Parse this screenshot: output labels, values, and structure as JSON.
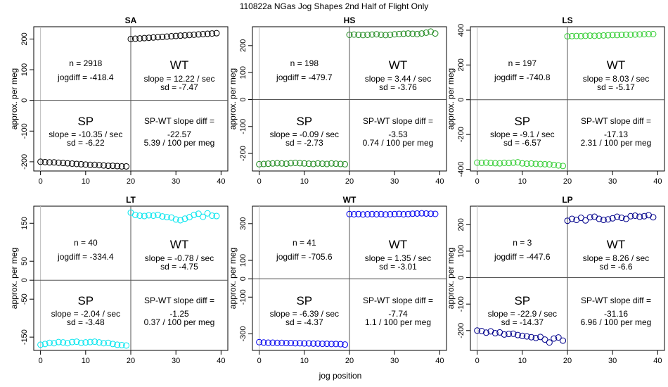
{
  "figure": {
    "title": "110822a   NGas Jog Shapes 2nd Half of Flight Only",
    "xlabel": "jog position",
    "ylabel": "approx. per meg"
  },
  "chart_data": [
    {
      "type": "scatter",
      "title": "SA",
      "color": "#000000",
      "ylim": [
        -230,
        240
      ],
      "yticks": [
        "-200",
        "-100",
        "0",
        "100",
        "200"
      ],
      "ytick_values": [
        -200,
        -100,
        0,
        100,
        200
      ],
      "xlim": [
        -1.5,
        41.5
      ],
      "xticks": [
        "0",
        "10",
        "20",
        "30",
        "40"
      ],
      "xtick_values": [
        0,
        10,
        20,
        30,
        40
      ],
      "n_text": "n = 2918",
      "jogdiff_text": "jogdiff = -418.4",
      "wt_label": "WT",
      "wt_slope_text": "slope = 12.22 / sec",
      "wt_sd_text": "sd = -7.47",
      "sp_label": "SP",
      "sp_slope_text": "slope = -10.35 / sec",
      "sp_sd_text": "sd = -6.22",
      "diff_label": "SP-WT slope diff =",
      "diff_value": "-22.57",
      "per_meg_text": "5.39 / 100 per meg",
      "sp_x": [
        0,
        1,
        2,
        3,
        4,
        5,
        6,
        7,
        8,
        9,
        10,
        11,
        12,
        13,
        14,
        15,
        16,
        17,
        18,
        19
      ],
      "sp_y": [
        -200,
        -201,
        -202,
        -202,
        -203,
        -204,
        -205,
        -206,
        -207,
        -208,
        -209,
        -210,
        -210,
        -211,
        -212,
        -213,
        -213,
        -214,
        -215,
        -215
      ],
      "wt_x": [
        20,
        21,
        22,
        23,
        24,
        25,
        26,
        27,
        28,
        29,
        30,
        31,
        32,
        33,
        34,
        35,
        36,
        37,
        38,
        39
      ],
      "wt_y": [
        200,
        201,
        202,
        203,
        204,
        205,
        206,
        207,
        208,
        209,
        210,
        211,
        212,
        213,
        214,
        215,
        216,
        217,
        218,
        219
      ]
    },
    {
      "type": "scatter",
      "title": "HS",
      "color": "#228B22",
      "ylim": [
        -265,
        270
      ],
      "yticks": [
        "-200",
        "-100",
        "0",
        "100",
        "200"
      ],
      "ytick_values": [
        -200,
        -100,
        0,
        100,
        200
      ],
      "xlim": [
        -1.5,
        41.5
      ],
      "xticks": [
        "0",
        "10",
        "20",
        "30",
        "40"
      ],
      "xtick_values": [
        0,
        10,
        20,
        30,
        40
      ],
      "n_text": "n = 198",
      "jogdiff_text": "jogdiff = -479.7",
      "wt_label": "WT",
      "wt_slope_text": "slope = 3.44 / sec",
      "wt_sd_text": "sd = -3.76",
      "sp_label": "SP",
      "sp_slope_text": "slope = -0.09 / sec",
      "sp_sd_text": "sd = -2.73",
      "diff_label": "SP-WT slope diff =",
      "diff_value": "-3.53",
      "per_meg_text": "0.74 / 100 per meg",
      "sp_x": [
        0,
        1,
        2,
        3,
        4,
        5,
        6,
        7,
        8,
        9,
        10,
        11,
        12,
        13,
        14,
        15,
        16,
        17,
        18,
        19
      ],
      "sp_y": [
        -240,
        -239,
        -238,
        -237,
        -236,
        -237,
        -238,
        -236,
        -235,
        -236,
        -237,
        -238,
        -239,
        -237,
        -238,
        -239,
        -237,
        -238,
        -239,
        -240
      ],
      "wt_x": [
        20,
        21,
        22,
        23,
        24,
        25,
        26,
        27,
        28,
        29,
        30,
        31,
        32,
        33,
        34,
        35,
        36,
        37,
        38,
        39
      ],
      "wt_y": [
        240,
        241,
        240,
        239,
        240,
        241,
        242,
        240,
        239,
        240,
        242,
        243,
        244,
        245,
        244,
        243,
        245,
        248,
        252,
        245
      ]
    },
    {
      "type": "scatter",
      "title": "LS",
      "color": "#32CD32",
      "ylim": [
        -410,
        420
      ],
      "yticks": [
        "-400",
        "-200",
        "0",
        "200",
        "400"
      ],
      "ytick_values": [
        -400,
        -200,
        0,
        200,
        400
      ],
      "xlim": [
        -1.5,
        41.5
      ],
      "xticks": [
        "0",
        "10",
        "20",
        "30",
        "40"
      ],
      "xtick_values": [
        0,
        10,
        20,
        30,
        40
      ],
      "n_text": "n = 197",
      "jogdiff_text": "jogdiff = -740.8",
      "wt_label": "WT",
      "wt_slope_text": "slope = 8.03 / sec",
      "wt_sd_text": "sd = -5.17",
      "sp_label": "SP",
      "sp_slope_text": "slope = -9.1 / sec",
      "sp_sd_text": "sd = -6.57",
      "diff_label": "SP-WT slope diff =",
      "diff_value": "-17.13",
      "per_meg_text": "2.31 / 100 per meg",
      "sp_x": [
        0,
        1,
        2,
        3,
        4,
        5,
        6,
        7,
        8,
        9,
        10,
        11,
        12,
        13,
        14,
        15,
        16,
        17,
        18,
        19
      ],
      "sp_y": [
        -362,
        -363,
        -362,
        -364,
        -365,
        -366,
        -363,
        -364,
        -362,
        -360,
        -366,
        -368,
        -367,
        -369,
        -370,
        -371,
        -372,
        -375,
        -378,
        -381
      ],
      "wt_x": [
        20,
        21,
        22,
        23,
        24,
        25,
        26,
        27,
        28,
        29,
        30,
        31,
        32,
        33,
        34,
        35,
        36,
        37,
        38,
        39
      ],
      "wt_y": [
        365,
        366,
        367,
        366,
        368,
        369,
        368,
        369,
        370,
        371,
        372,
        372,
        373,
        374,
        374,
        375,
        376,
        377,
        378,
        378
      ]
    },
    {
      "type": "scatter",
      "title": "LT",
      "color": "#00E5EE",
      "ylim": [
        -185,
        195
      ],
      "yticks": [
        "-150",
        "-50",
        "0",
        "50",
        "150"
      ],
      "ytick_values": [
        -150,
        -50,
        0,
        50,
        150
      ],
      "xlim": [
        -1.5,
        41.5
      ],
      "xticks": [
        "0",
        "10",
        "20",
        "30",
        "40"
      ],
      "xtick_values": [
        0,
        10,
        20,
        30,
        40
      ],
      "n_text": "n = 40",
      "jogdiff_text": "jogdiff = -334.4",
      "wt_label": "WT",
      "wt_slope_text": "slope = -0.78 / sec",
      "wt_sd_text": "sd = -4.75",
      "sp_label": "SP",
      "sp_slope_text": "slope = -2.04 / sec",
      "sp_sd_text": "sd = -3.48",
      "diff_label": "SP-WT slope diff =",
      "diff_value": "-1.25",
      "per_meg_text": "0.37 / 100 per meg",
      "sp_x": [
        0,
        1,
        2,
        3,
        4,
        5,
        6,
        7,
        8,
        9,
        10,
        11,
        12,
        13,
        14,
        15,
        16,
        17,
        18,
        19
      ],
      "sp_y": [
        -170,
        -168,
        -165,
        -166,
        -163,
        -164,
        -166,
        -163,
        -162,
        -165,
        -164,
        -163,
        -162,
        -164,
        -166,
        -165,
        -168,
        -170,
        -171,
        -172
      ],
      "wt_x": [
        20,
        21,
        22,
        23,
        24,
        25,
        26,
        27,
        28,
        29,
        30,
        31,
        32,
        33,
        34,
        35,
        36,
        37,
        38,
        39
      ],
      "wt_y": [
        178,
        172,
        170,
        169,
        171,
        170,
        172,
        168,
        166,
        165,
        160,
        158,
        162,
        166,
        172,
        175,
        167,
        176,
        170,
        169
      ]
    },
    {
      "type": "scatter",
      "title": "WT",
      "color": "#0000EE",
      "ylim": [
        -390,
        395
      ],
      "yticks": [
        "-300",
        "-100",
        "0",
        "100",
        "300"
      ],
      "ytick_values": [
        -300,
        -100,
        0,
        100,
        300
      ],
      "xlim": [
        -1.5,
        41.5
      ],
      "xticks": [
        "0",
        "10",
        "20",
        "30",
        "40"
      ],
      "xtick_values": [
        0,
        10,
        20,
        30,
        40
      ],
      "n_text": "n = 41",
      "jogdiff_text": "jogdiff = -705.6",
      "wt_label": "WT",
      "wt_slope_text": "slope = 1.35 / sec",
      "wt_sd_text": "sd = -3.01",
      "sp_label": "SP",
      "sp_slope_text": "slope = -6.39 / sec",
      "sp_sd_text": "sd = -4.37",
      "diff_label": "SP-WT slope diff =",
      "diff_value": "-7.74",
      "per_meg_text": "1.1 / 100 per meg",
      "sp_x": [
        0,
        1,
        2,
        3,
        4,
        5,
        6,
        7,
        8,
        9,
        10,
        11,
        12,
        13,
        14,
        15,
        16,
        17,
        18,
        19
      ],
      "sp_y": [
        -345,
        -347,
        -348,
        -348,
        -349,
        -349,
        -350,
        -350,
        -351,
        -351,
        -352,
        -352,
        -353,
        -353,
        -354,
        -354,
        -355,
        -355,
        -356,
        -358
      ],
      "wt_x": [
        20,
        21,
        22,
        23,
        24,
        25,
        26,
        27,
        28,
        29,
        30,
        31,
        32,
        33,
        34,
        35,
        36,
        37,
        38,
        39
      ],
      "wt_y": [
        352,
        351,
        352,
        350,
        351,
        352,
        351,
        352,
        350,
        351,
        352,
        353,
        351,
        352,
        354,
        355,
        356,
        355,
        354,
        353
      ]
    },
    {
      "type": "scatter",
      "title": "LP",
      "color": "#00008B",
      "ylim": [
        -275,
        270
      ],
      "yticks": [
        "-200",
        "-100",
        "0",
        "100",
        "200"
      ],
      "ytick_values": [
        -200,
        -100,
        0,
        100,
        200
      ],
      "xlim": [
        -1.5,
        41.5
      ],
      "xticks": [
        "0",
        "10",
        "20",
        "30",
        "40"
      ],
      "xtick_values": [
        0,
        10,
        20,
        30,
        40
      ],
      "n_text": "n = 3",
      "jogdiff_text": "jogdiff = -447.6",
      "wt_label": "WT",
      "wt_slope_text": "slope = 8.26 / sec",
      "wt_sd_text": "sd = -6.6",
      "sp_label": "SP",
      "sp_slope_text": "slope = -22.9 / sec",
      "sp_sd_text": "sd = -14.37",
      "diff_label": "SP-WT slope diff =",
      "diff_value": "-31.16",
      "per_meg_text": "6.96 / 100 per meg",
      "sp_x": [
        0,
        1,
        2,
        3,
        4,
        5,
        6,
        7,
        8,
        9,
        10,
        11,
        12,
        13,
        14,
        15,
        16,
        17,
        18,
        19
      ],
      "sp_y": [
        -200,
        -202,
        -208,
        -203,
        -210,
        -207,
        -215,
        -213,
        -212,
        -217,
        -220,
        -222,
        -225,
        -228,
        -224,
        -234,
        -245,
        -230,
        -226,
        -238
      ],
      "wt_x": [
        20,
        21,
        22,
        23,
        24,
        25,
        26,
        27,
        28,
        29,
        30,
        31,
        32,
        33,
        34,
        35,
        36,
        37,
        38,
        39
      ],
      "wt_y": [
        215,
        222,
        218,
        226,
        216,
        228,
        230,
        222,
        218,
        220,
        224,
        230,
        226,
        222,
        232,
        234,
        230,
        232,
        236,
        228
      ]
    }
  ]
}
